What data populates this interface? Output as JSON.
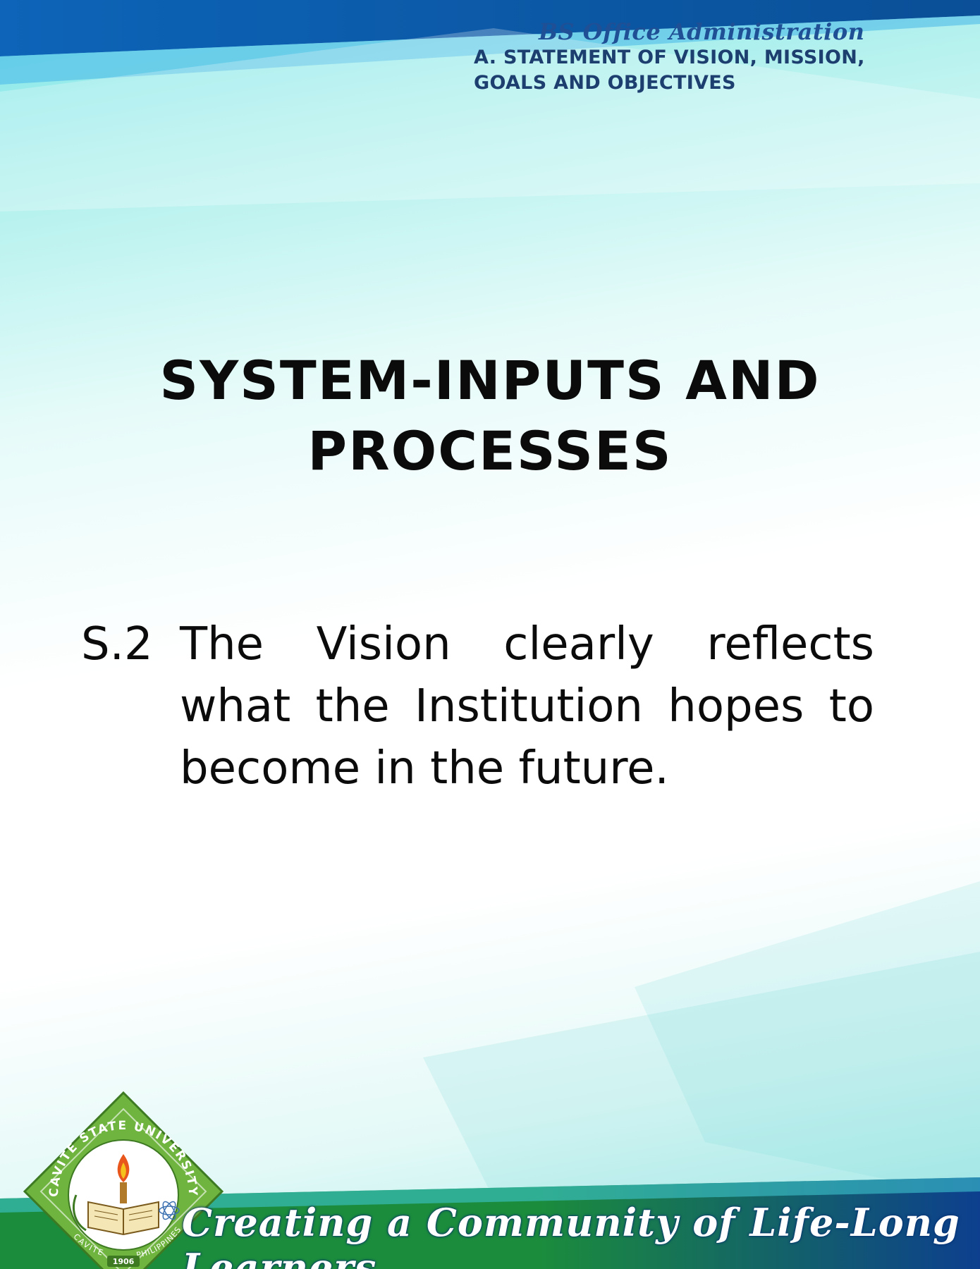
{
  "header": {
    "program": "BS Office Administration",
    "section_line1": "A. STATEMENT OF VISION, MISSION,",
    "section_line2": "GOALS AND OBJECTIVES"
  },
  "title": {
    "line1": "SYSTEM-INPUTS AND",
    "line2": "PROCESSES"
  },
  "statement": {
    "number": "S.2",
    "text": "The Vision clearly reflects what the Institution hopes to become in the future."
  },
  "seal": {
    "top_text": "CAVITE STATE UNIVERSITY",
    "bottom_left": "CAVITE",
    "bottom_right": "PHILIPPINES",
    "year": "1906"
  },
  "footer": {
    "slogan": "Creating a Community of Life-Long Learners"
  },
  "colors": {
    "top_band": "#0a5aa6",
    "bottom_band": "#0e4a96",
    "green_band": "#1f8f3a",
    "seal_green": "#6fb43f",
    "header_text": "#1d3f70"
  }
}
